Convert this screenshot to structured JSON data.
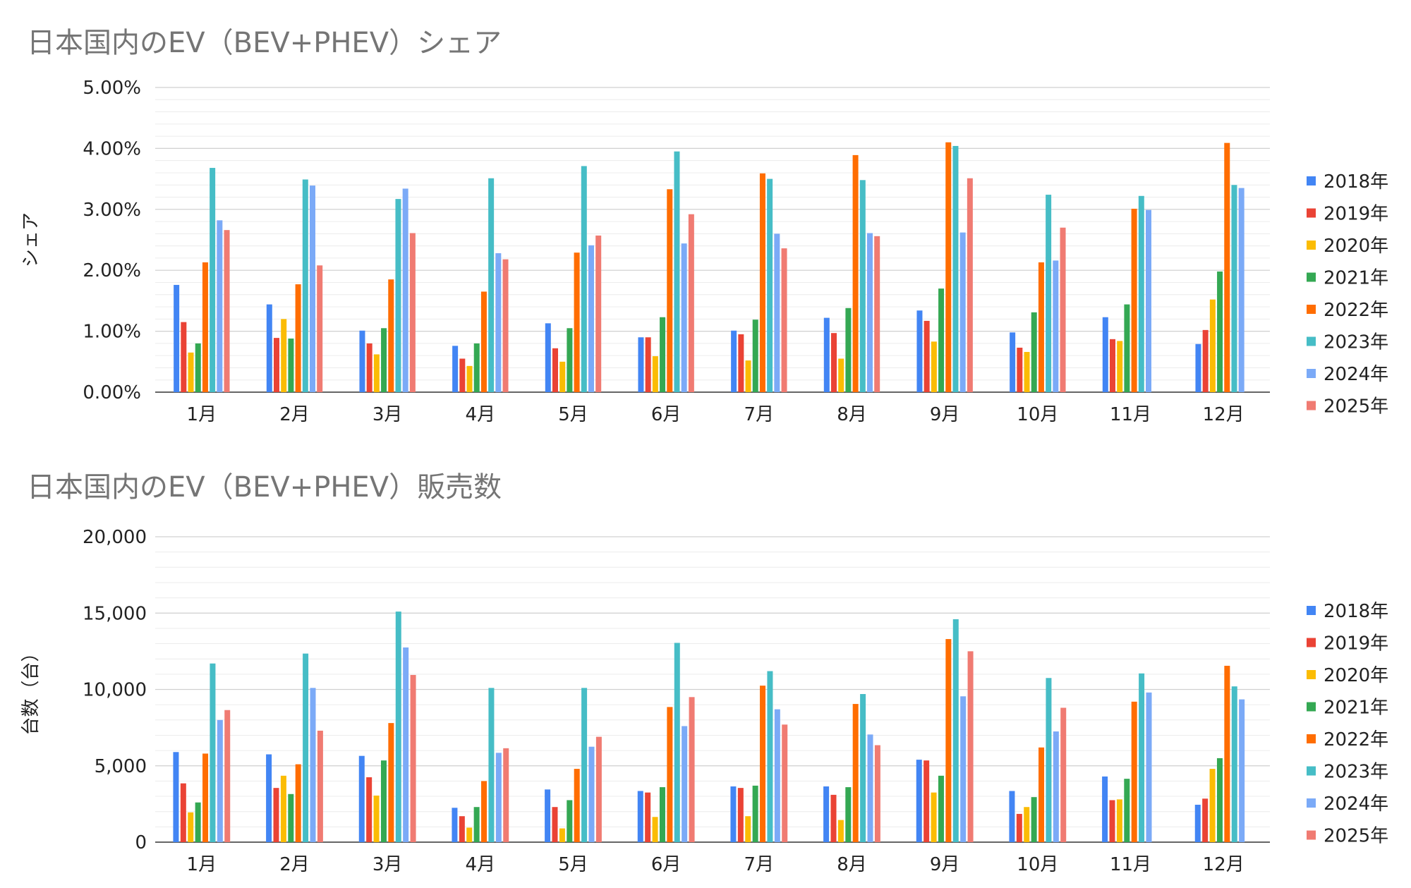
{
  "chart_data": [
    {
      "type": "bar",
      "title": "日本国内のEV（BEV+PHEV）シェア",
      "xlabel": "",
      "ylabel": "シェア",
      "ylim": [
        0,
        0.05
      ],
      "y_tick_labels": [
        "0.00%",
        "1.00%",
        "2.00%",
        "3.00%",
        "4.00%",
        "5.00%"
      ],
      "grid": true,
      "legend_position": "right",
      "categories": [
        "1月",
        "2月",
        "3月",
        "4月",
        "5月",
        "6月",
        "7月",
        "8月",
        "9月",
        "10月",
        "11月",
        "12月"
      ],
      "series": [
        {
          "name": "2018年",
          "color": "#4285F4",
          "values": [
            0.0176,
            0.0144,
            0.0101,
            0.0076,
            0.0113,
            0.009,
            0.0101,
            0.0122,
            0.0134,
            0.0098,
            0.0123,
            0.0079
          ]
        },
        {
          "name": "2019年",
          "color": "#EA4335",
          "values": [
            0.0115,
            0.0089,
            0.008,
            0.0055,
            0.0072,
            0.009,
            0.0095,
            0.0097,
            0.0117,
            0.0073,
            0.0087,
            0.0102
          ]
        },
        {
          "name": "2020年",
          "color": "#FBBC04",
          "values": [
            0.0065,
            0.012,
            0.0062,
            0.0043,
            0.005,
            0.0059,
            0.0052,
            0.0055,
            0.0083,
            0.0066,
            0.0084,
            0.0152
          ]
        },
        {
          "name": "2021年",
          "color": "#34A853",
          "values": [
            0.008,
            0.0088,
            0.0105,
            0.008,
            0.0105,
            0.0123,
            0.0119,
            0.0138,
            0.017,
            0.0131,
            0.0144,
            0.0198
          ]
        },
        {
          "name": "2022年",
          "color": "#FF6D01",
          "values": [
            0.0213,
            0.0177,
            0.0185,
            0.0165,
            0.0229,
            0.0333,
            0.0359,
            0.0389,
            0.041,
            0.0213,
            0.0301,
            0.0409
          ]
        },
        {
          "name": "2023年",
          "color": "#46BDC6",
          "values": [
            0.0368,
            0.0349,
            0.0317,
            0.0351,
            0.0371,
            0.0395,
            0.035,
            0.0348,
            0.0404,
            0.0324,
            0.0322,
            0.034
          ]
        },
        {
          "name": "2024年",
          "color": "#7BAAF7",
          "values": [
            0.0282,
            0.0339,
            0.0334,
            0.0228,
            0.0241,
            0.0244,
            0.026,
            0.0261,
            0.0262,
            0.0216,
            0.0299,
            0.0335
          ]
        },
        {
          "name": "2025年",
          "color": "#F07B72",
          "values": [
            0.0266,
            0.0208,
            0.0261,
            0.0218,
            0.0257,
            0.0292,
            0.0236,
            0.0256,
            0.0351,
            0.027,
            null,
            null
          ]
        }
      ]
    },
    {
      "type": "bar",
      "title": "日本国内のEV（BEV+PHEV）販売数",
      "xlabel": "",
      "ylabel": "台数（台）",
      "ylim": [
        0,
        20000
      ],
      "y_tick_labels": [
        "0",
        "5,000",
        "10,000",
        "15,000",
        "20,000"
      ],
      "grid": true,
      "legend_position": "right",
      "categories": [
        "1月",
        "2月",
        "3月",
        "4月",
        "5月",
        "6月",
        "7月",
        "8月",
        "9月",
        "10月",
        "11月",
        "12月"
      ],
      "series": [
        {
          "name": "2018年",
          "color": "#4285F4",
          "values": [
            5900,
            5750,
            5650,
            2250,
            3450,
            3350,
            3650,
            3650,
            5400,
            3350,
            4300,
            2450
          ]
        },
        {
          "name": "2019年",
          "color": "#EA4335",
          "values": [
            3850,
            3550,
            4250,
            1700,
            2300,
            3250,
            3550,
            3100,
            5350,
            1850,
            2750,
            2850
          ]
        },
        {
          "name": "2020年",
          "color": "#FBBC04",
          "values": [
            1950,
            4350,
            3050,
            950,
            900,
            1650,
            1700,
            1450,
            3250,
            2300,
            2800,
            4800
          ]
        },
        {
          "name": "2021年",
          "color": "#34A853",
          "values": [
            2600,
            3150,
            5350,
            2300,
            2750,
            3600,
            3700,
            3600,
            4350,
            2950,
            4150,
            5500
          ]
        },
        {
          "name": "2022年",
          "color": "#FF6D01",
          "values": [
            5800,
            5100,
            7800,
            4000,
            4800,
            8850,
            10250,
            9050,
            13300,
            6200,
            9200,
            11550
          ]
        },
        {
          "name": "2023年",
          "color": "#46BDC6",
          "values": [
            11700,
            12350,
            15100,
            10100,
            10100,
            13050,
            11200,
            9700,
            14600,
            10750,
            11050,
            10200
          ]
        },
        {
          "name": "2024年",
          "color": "#7BAAF7",
          "values": [
            8000,
            10100,
            12750,
            5850,
            6250,
            7600,
            8700,
            7050,
            9550,
            7250,
            9800,
            9350
          ]
        },
        {
          "name": "2025年",
          "color": "#F07B72",
          "values": [
            8650,
            7300,
            10950,
            6150,
            6900,
            9500,
            7700,
            6350,
            12500,
            8800,
            null,
            null
          ]
        }
      ]
    }
  ]
}
